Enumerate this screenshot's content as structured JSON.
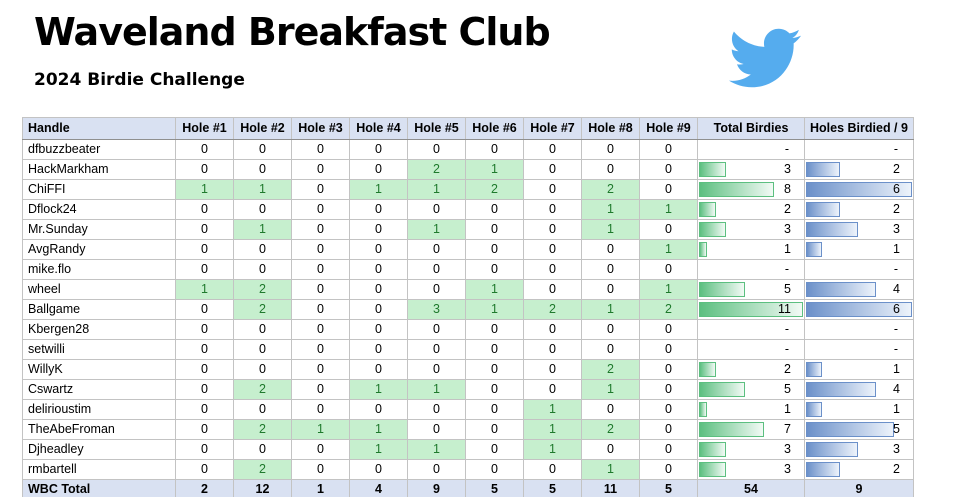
{
  "title": "Waveland Breakfast Club",
  "subtitle": "2024 Birdie Challenge",
  "twitter_icon": "twitter-bird-logo",
  "colors": {
    "header_bg": "#d9e1f2",
    "grid_border": "#c3c3c3",
    "outer_border": "#8f8f8f",
    "birdie_bg": "#c6efce",
    "birdie_text": "#1f7a2d",
    "green_bar": "#5cbf80",
    "green_bar_fade": "#f2faf5",
    "blue_bar": "#6b90c9",
    "blue_bar_fade": "#edf3fb",
    "twitter_blue": "#55acee"
  },
  "table": {
    "columns": [
      "Handle",
      "Hole #1",
      "Hole #2",
      "Hole #3",
      "Hole #4",
      "Hole #5",
      "Hole #6",
      "Hole #7",
      "Hole #8",
      "Hole #9",
      "Total Birdies",
      "Holes Birdied / 9"
    ],
    "zero_display": "-",
    "databar_max": {
      "total_birdies": 11,
      "holes_birdied": 6
    },
    "rows": [
      {
        "handle": "dfbuzzbeater",
        "holes": [
          0,
          0,
          0,
          0,
          0,
          0,
          0,
          0,
          0
        ],
        "total_birdies": 0,
        "holes_birdied": 0
      },
      {
        "handle": "HackMarkham",
        "holes": [
          0,
          0,
          0,
          0,
          2,
          1,
          0,
          0,
          0
        ],
        "total_birdies": 3,
        "holes_birdied": 2
      },
      {
        "handle": "ChiFFI",
        "holes": [
          1,
          1,
          0,
          1,
          1,
          2,
          0,
          2,
          0
        ],
        "total_birdies": 8,
        "holes_birdied": 6
      },
      {
        "handle": "Dflock24",
        "holes": [
          0,
          0,
          0,
          0,
          0,
          0,
          0,
          1,
          1
        ],
        "total_birdies": 2,
        "holes_birdied": 2
      },
      {
        "handle": "Mr.Sunday",
        "holes": [
          0,
          1,
          0,
          0,
          1,
          0,
          0,
          1,
          0
        ],
        "total_birdies": 3,
        "holes_birdied": 3
      },
      {
        "handle": "AvgRandy",
        "holes": [
          0,
          0,
          0,
          0,
          0,
          0,
          0,
          0,
          1
        ],
        "total_birdies": 1,
        "holes_birdied": 1
      },
      {
        "handle": "mike.flo",
        "holes": [
          0,
          0,
          0,
          0,
          0,
          0,
          0,
          0,
          0
        ],
        "total_birdies": 0,
        "holes_birdied": 0
      },
      {
        "handle": "wheel",
        "holes": [
          1,
          2,
          0,
          0,
          0,
          1,
          0,
          0,
          1
        ],
        "total_birdies": 5,
        "holes_birdied": 4
      },
      {
        "handle": "Ballgame",
        "holes": [
          0,
          2,
          0,
          0,
          3,
          1,
          2,
          1,
          2
        ],
        "total_birdies": 11,
        "holes_birdied": 6
      },
      {
        "handle": "Kbergen28",
        "holes": [
          0,
          0,
          0,
          0,
          0,
          0,
          0,
          0,
          0
        ],
        "total_birdies": 0,
        "holes_birdied": 0
      },
      {
        "handle": "setwilli",
        "holes": [
          0,
          0,
          0,
          0,
          0,
          0,
          0,
          0,
          0
        ],
        "total_birdies": 0,
        "holes_birdied": 0
      },
      {
        "handle": "WillyK",
        "holes": [
          0,
          0,
          0,
          0,
          0,
          0,
          0,
          2,
          0
        ],
        "total_birdies": 2,
        "holes_birdied": 1
      },
      {
        "handle": "Cswartz",
        "holes": [
          0,
          2,
          0,
          1,
          1,
          0,
          0,
          1,
          0
        ],
        "total_birdies": 5,
        "holes_birdied": 4
      },
      {
        "handle": "delirioustim",
        "holes": [
          0,
          0,
          0,
          0,
          0,
          0,
          1,
          0,
          0
        ],
        "total_birdies": 1,
        "holes_birdied": 1
      },
      {
        "handle": "TheAbeFroman",
        "holes": [
          0,
          2,
          1,
          1,
          0,
          0,
          1,
          2,
          0
        ],
        "total_birdies": 7,
        "holes_birdied": 5
      },
      {
        "handle": "Djheadley",
        "holes": [
          0,
          0,
          0,
          1,
          1,
          0,
          1,
          0,
          0
        ],
        "total_birdies": 3,
        "holes_birdied": 3
      },
      {
        "handle": "rmbartell",
        "holes": [
          0,
          2,
          0,
          0,
          0,
          0,
          0,
          1,
          0
        ],
        "total_birdies": 3,
        "holes_birdied": 2
      }
    ],
    "total_row": {
      "label": "WBC Total",
      "holes": [
        2,
        12,
        1,
        4,
        9,
        5,
        5,
        11,
        5
      ],
      "total_birdies": 54,
      "holes_birdied": 9
    }
  }
}
